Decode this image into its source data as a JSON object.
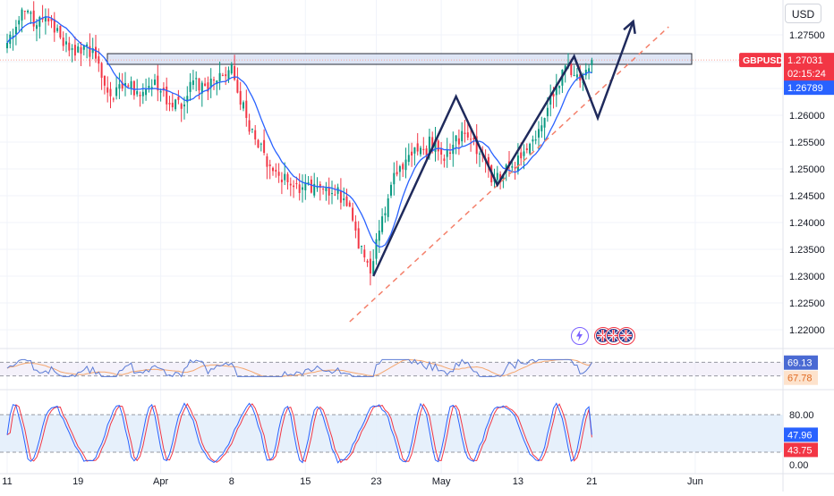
{
  "currency_button": "USD",
  "price_tags": {
    "symbol": "GBPUSD",
    "price": "1.27031",
    "countdown": "02:15:24",
    "ma_value": "1.26789"
  },
  "chart_data": [
    {
      "type": "candlestick",
      "symbol": "GBPUSD",
      "y_axis": {
        "ticks": [
          1.22,
          1.225,
          1.23,
          1.235,
          1.24,
          1.245,
          1.25,
          1.255,
          1.26,
          1.265,
          1.27,
          1.275
        ],
        "tick_labels": [
          "1.22000",
          "1.22500",
          "1.23000",
          "1.23500",
          "1.24000",
          "1.24500",
          "1.25000",
          "1.25500",
          "1.26000",
          "",
          "",
          "1.27500"
        ],
        "range": [
          1.2165,
          1.2815
        ]
      },
      "x_axis": {
        "labels": [
          {
            "text": "11",
            "bar": 0
          },
          {
            "text": "19",
            "bar": 24
          },
          {
            "text": "Apr",
            "bar": 52
          },
          {
            "text": "8",
            "bar": 76
          },
          {
            "text": "15",
            "bar": 101
          },
          {
            "text": "23",
            "bar": 125
          },
          {
            "text": "May",
            "bar": 147
          },
          {
            "text": "13",
            "bar": 173
          },
          {
            "text": "21",
            "bar": 198
          },
          {
            "text": "Jun",
            "bar": 233
          }
        ]
      },
      "ohlc_anchor_closes": [
        {
          "bar": 0,
          "close": 1.2735
        },
        {
          "bar": 3,
          "close": 1.2765
        },
        {
          "bar": 7,
          "close": 1.2795
        },
        {
          "bar": 10,
          "close": 1.2768
        },
        {
          "bar": 14,
          "close": 1.2775
        },
        {
          "bar": 18,
          "close": 1.2745
        },
        {
          "bar": 22,
          "close": 1.2725
        },
        {
          "bar": 25,
          "close": 1.2715
        },
        {
          "bar": 29,
          "close": 1.2725
        },
        {
          "bar": 32,
          "close": 1.267
        },
        {
          "bar": 36,
          "close": 1.263
        },
        {
          "bar": 40,
          "close": 1.266
        },
        {
          "bar": 44,
          "close": 1.2645
        },
        {
          "bar": 48,
          "close": 1.2655
        },
        {
          "bar": 52,
          "close": 1.2645
        },
        {
          "bar": 56,
          "close": 1.2615
        },
        {
          "bar": 60,
          "close": 1.262
        },
        {
          "bar": 63,
          "close": 1.2665
        },
        {
          "bar": 67,
          "close": 1.2655
        },
        {
          "bar": 70,
          "close": 1.2665
        },
        {
          "bar": 73,
          "close": 1.2675
        },
        {
          "bar": 76,
          "close": 1.2695
        },
        {
          "bar": 79,
          "close": 1.262
        },
        {
          "bar": 83,
          "close": 1.2575
        },
        {
          "bar": 87,
          "close": 1.253
        },
        {
          "bar": 91,
          "close": 1.2495
        },
        {
          "bar": 95,
          "close": 1.2475
        },
        {
          "bar": 99,
          "close": 1.2455
        },
        {
          "bar": 102,
          "close": 1.2475
        },
        {
          "bar": 106,
          "close": 1.2465
        },
        {
          "bar": 110,
          "close": 1.2455
        },
        {
          "bar": 114,
          "close": 1.2445
        },
        {
          "bar": 118,
          "close": 1.2385
        },
        {
          "bar": 121,
          "close": 1.2335
        },
        {
          "bar": 123,
          "close": 1.2305
        },
        {
          "bar": 126,
          "close": 1.2385
        },
        {
          "bar": 129,
          "close": 1.2445
        },
        {
          "bar": 133,
          "close": 1.2505
        },
        {
          "bar": 137,
          "close": 1.2525
        },
        {
          "bar": 141,
          "close": 1.2535
        },
        {
          "bar": 145,
          "close": 1.2555
        },
        {
          "bar": 148,
          "close": 1.2515
        },
        {
          "bar": 151,
          "close": 1.2545
        },
        {
          "bar": 155,
          "close": 1.2565
        },
        {
          "bar": 158,
          "close": 1.2555
        },
        {
          "bar": 161,
          "close": 1.2525
        },
        {
          "bar": 164,
          "close": 1.2475
        },
        {
          "bar": 167,
          "close": 1.2475
        },
        {
          "bar": 170,
          "close": 1.2505
        },
        {
          "bar": 173,
          "close": 1.2525
        },
        {
          "bar": 176,
          "close": 1.2535
        },
        {
          "bar": 179,
          "close": 1.2555
        },
        {
          "bar": 182,
          "close": 1.2595
        },
        {
          "bar": 185,
          "close": 1.2635
        },
        {
          "bar": 188,
          "close": 1.2685
        },
        {
          "bar": 190,
          "close": 1.2695
        },
        {
          "bar": 192,
          "close": 1.2675
        },
        {
          "bar": 194,
          "close": 1.2665
        },
        {
          "bar": 196,
          "close": 1.2685
        },
        {
          "bar": 198,
          "close": 1.2703
        }
      ],
      "moving_average": {
        "last_value": 1.26789,
        "color": "#2962ff"
      },
      "last_price": 1.27031,
      "resistance_zone": [
        1.2695,
        1.2715
      ],
      "trendline_points": [
        {
          "bar": 116,
          "price": 1.2215
        },
        {
          "bar": 224,
          "price": 1.2765
        }
      ],
      "projection_path": [
        {
          "bar": 124,
          "price": 1.23
        },
        {
          "bar": 152,
          "price": 1.2635
        },
        {
          "bar": 166,
          "price": 1.247
        },
        {
          "bar": 192,
          "price": 1.271
        },
        {
          "bar": 200,
          "price": 1.2595
        },
        {
          "bar": 212,
          "price": 1.2775
        }
      ],
      "colors": {
        "up": "#089981",
        "down": "#f23645",
        "zone_fill": "#d6def3",
        "zone_stroke": "#2a2e39",
        "projection": "#1f2a5c",
        "trendline": "#f4806b"
      }
    },
    {
      "type": "line",
      "name": "rsi-panel",
      "ylim": [
        0,
        100
      ],
      "band": [
        30,
        70
      ],
      "value_tag": "69.13",
      "ma_tag": "67.78",
      "last_values": [
        69.13,
        67.78
      ],
      "series_colors": [
        "#5b7bd5",
        "#f4a76f"
      ]
    },
    {
      "type": "line",
      "name": "stochastic-panel",
      "ylim": [
        0,
        100
      ],
      "band": [
        20,
        80
      ],
      "tick_labels": [
        "80.00",
        "0.00"
      ],
      "k_tag": "47.96",
      "d_tag": "43.75",
      "last_values": [
        47.96,
        43.75
      ],
      "series_colors": [
        "#2962ff",
        "#f23645"
      ]
    }
  ]
}
